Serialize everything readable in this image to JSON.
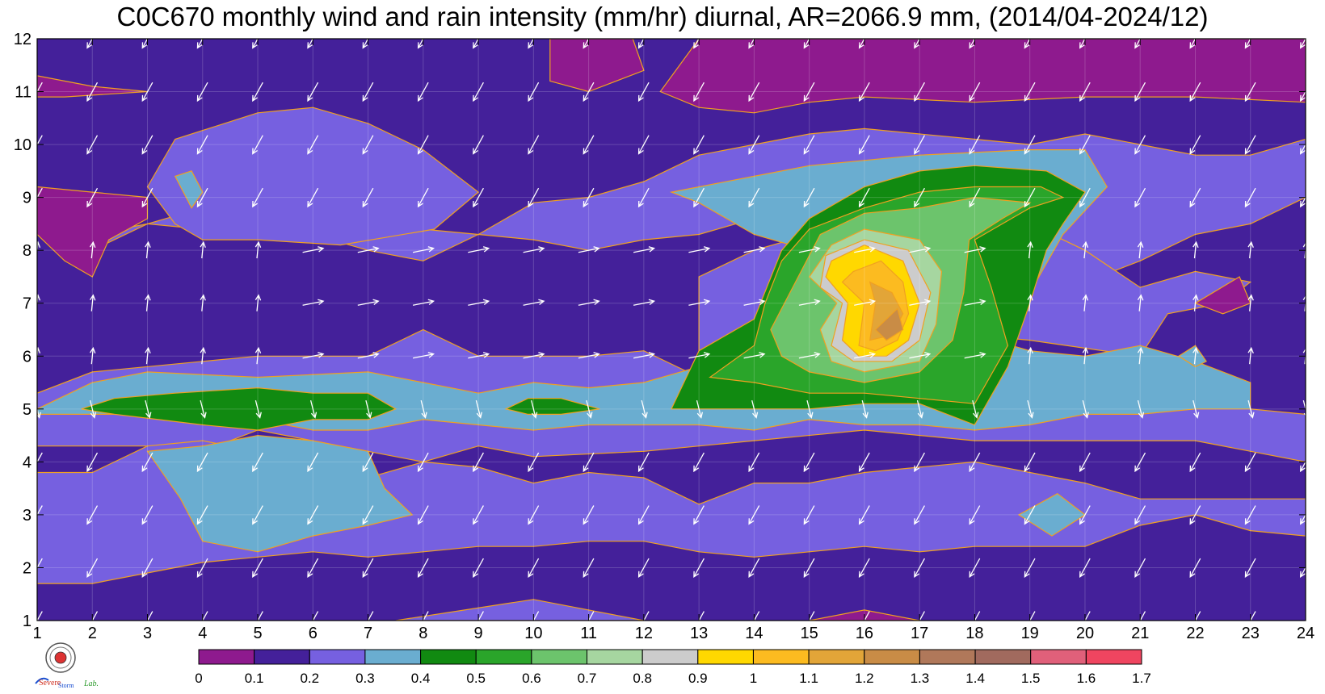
{
  "title": "C0C670 monthly wind and rain intensity (mm/hr) diurnal, AR=2066.9 mm, (2014/04-2024/12)",
  "logo_text": {
    "left": "Severe",
    "middle": "Storm",
    "right": "Lab."
  },
  "chart_data": {
    "type": "heatmap",
    "title": "C0C670 monthly wind and rain intensity (mm/hr) diurnal, AR=2066.9 mm, (2014/04-2024/12)",
    "xlabel": "",
    "ylabel": "",
    "xlim": [
      1,
      24
    ],
    "ylim": [
      1,
      12
    ],
    "x_ticks": [
      1,
      2,
      3,
      4,
      5,
      6,
      7,
      8,
      9,
      10,
      11,
      12,
      13,
      14,
      15,
      16,
      17,
      18,
      19,
      20,
      21,
      22,
      23,
      24
    ],
    "y_ticks": [
      1,
      2,
      3,
      4,
      5,
      6,
      7,
      8,
      9,
      10,
      11,
      12
    ],
    "grid": true,
    "colorbar": {
      "levels": [
        0,
        0.1,
        0.2,
        0.3,
        0.4,
        0.5,
        0.6,
        0.7,
        0.8,
        0.9,
        1,
        1.1,
        1.2,
        1.3,
        1.4,
        1.5,
        1.6,
        1.7
      ],
      "colors": [
        "#8e1a8e",
        "#44209a",
        "#7660e0",
        "#6aadd0",
        "#118a11",
        "#2aa52a",
        "#6cc46c",
        "#a6d6a0",
        "#cccccc",
        "#ffd800",
        "#fcbb20",
        "#e2a538",
        "#c98c46",
        "#b0785a",
        "#a16a5e",
        "#e0607a",
        "#ef4560",
        "#d0243a"
      ]
    },
    "rain_intensity_samples": [
      {
        "hour": 1,
        "month_values": [
          0.15,
          0.25,
          0.25,
          0.15,
          0.35,
          0.05,
          0.15,
          0.15,
          0.05,
          0.15,
          0.05,
          0.15
        ]
      },
      {
        "hour": 3,
        "month_values": [
          0.15,
          0.25,
          0.35,
          0.35,
          0.45,
          0.35,
          0.15,
          0.15,
          0.05,
          0.25,
          0.15,
          0.15
        ]
      },
      {
        "hour": 5,
        "month_values": [
          0.15,
          0.35,
          0.35,
          0.35,
          0.45,
          0.35,
          0.15,
          0.25,
          0.25,
          0.25,
          0.15,
          0.15
        ]
      },
      {
        "hour": 7,
        "month_values": [
          0.15,
          0.25,
          0.35,
          0.35,
          0.45,
          0.35,
          0.15,
          0.25,
          0.25,
          0.25,
          0.15,
          0.15
        ]
      },
      {
        "hour": 9,
        "month_values": [
          0.25,
          0.25,
          0.25,
          0.25,
          0.35,
          0.15,
          0.15,
          0.15,
          0.25,
          0.15,
          0.15,
          0.15
        ]
      },
      {
        "hour": 11,
        "month_values": [
          0.15,
          0.15,
          0.25,
          0.25,
          0.35,
          0.35,
          0.15,
          0.15,
          0.25,
          0.15,
          0.05,
          0.05
        ]
      },
      {
        "hour": 13,
        "month_values": [
          0.15,
          0.25,
          0.25,
          0.35,
          0.45,
          0.45,
          0.35,
          0.25,
          0.15,
          0.15,
          0.05,
          0.05
        ]
      },
      {
        "hour": 15,
        "month_values": [
          0.15,
          0.25,
          0.25,
          0.35,
          0.45,
          0.95,
          1.05,
          0.95,
          0.55,
          0.15,
          0.05,
          0.05
        ]
      },
      {
        "hour": 16,
        "month_values": [
          0.05,
          0.15,
          0.25,
          0.35,
          0.45,
          1.25,
          1.25,
          1.05,
          0.65,
          0.25,
          0.05,
          0.05
        ]
      },
      {
        "hour": 17,
        "month_values": [
          0.15,
          0.15,
          0.25,
          0.35,
          0.45,
          1.15,
          1.25,
          0.95,
          0.55,
          0.25,
          0.05,
          0.05
        ]
      },
      {
        "hour": 19,
        "month_values": [
          0.15,
          0.25,
          0.35,
          0.25,
          0.35,
          0.45,
          0.55,
          0.45,
          0.55,
          0.25,
          0.15,
          0.05
        ]
      },
      {
        "hour": 21,
        "month_values": [
          0.15,
          0.25,
          0.15,
          0.15,
          0.25,
          0.35,
          0.25,
          0.35,
          0.25,
          0.25,
          0.15,
          0.05
        ]
      },
      {
        "hour": 23,
        "month_values": [
          0.15,
          0.15,
          0.25,
          0.15,
          0.25,
          0.25,
          0.05,
          0.15,
          0.15,
          0.15,
          0.15,
          0.05
        ]
      }
    ],
    "wind_vectors": "white arrows on a 1-hour x 1-month grid, mostly pointing down-left (from NE) in winter months and rightward / up-right in summer months"
  }
}
